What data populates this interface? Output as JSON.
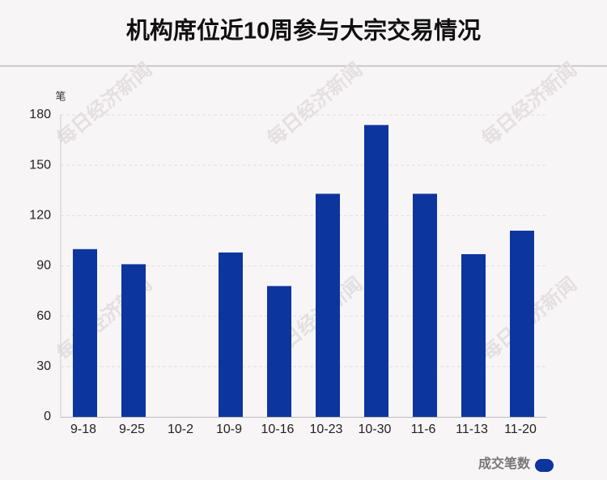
{
  "chart_data": {
    "type": "bar",
    "title": "机构席位近10周参与大宗交易情况",
    "y_label": "笔",
    "watermark": "每日经济新闻",
    "categories": [
      "9-18",
      "9-25",
      "10-2",
      "10-9",
      "10-16",
      "10-23",
      "10-30",
      "11-6",
      "11-13",
      "11-20"
    ],
    "series": [
      {
        "name": "成交笔数",
        "color": "#0d359e",
        "values": [
          100,
          91,
          0,
          98,
          78,
          133,
          174,
          133,
          97,
          111
        ]
      }
    ],
    "ylim": [
      0,
      180
    ],
    "yticks": [
      0,
      30,
      60,
      90,
      120,
      150,
      180
    ],
    "grid": true,
    "legend": "bottom-right"
  }
}
